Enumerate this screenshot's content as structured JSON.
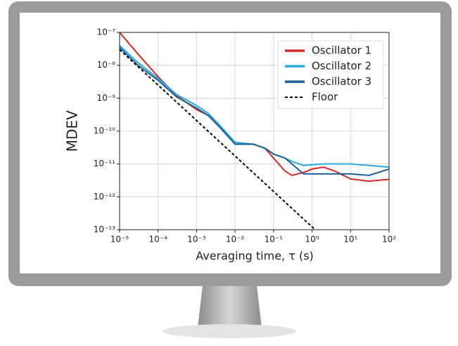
{
  "chart_data": {
    "type": "line",
    "xlabel": "Averaging time, τ (s)",
    "ylabel": "MDEV",
    "log_x": true,
    "log_y": true,
    "grid": true,
    "legend": "upper right",
    "xlim": [
      1e-05,
      100
    ],
    "ylim": [
      1e-13,
      1e-07
    ],
    "xticks": [
      {
        "value": 1e-05,
        "label": "10⁻⁵"
      },
      {
        "value": 0.0001,
        "label": "10⁻⁴"
      },
      {
        "value": 0.001,
        "label": "10⁻³"
      },
      {
        "value": 0.01,
        "label": "10⁻²"
      },
      {
        "value": 0.1,
        "label": "10⁻¹"
      },
      {
        "value": 1,
        "label": "10⁰"
      },
      {
        "value": 10,
        "label": "10¹"
      },
      {
        "value": 100,
        "label": "10²"
      }
    ],
    "yticks": [
      {
        "value": 1e-13,
        "label": "10⁻¹³"
      },
      {
        "value": 1e-12,
        "label": "10⁻¹²"
      },
      {
        "value": 1e-11,
        "label": "10⁻¹¹"
      },
      {
        "value": 1e-10,
        "label": "10⁻¹⁰"
      },
      {
        "value": 1e-09,
        "label": "10⁻⁹"
      },
      {
        "value": 1e-08,
        "label": "10⁻⁸"
      },
      {
        "value": 1e-07,
        "label": "10⁻⁷"
      }
    ],
    "x": [
      1e-05,
      3e-05,
      0.0001,
      0.0003,
      0.001,
      0.002,
      0.004,
      0.01,
      0.03,
      0.06,
      0.1,
      0.2,
      0.3,
      0.6,
      1,
      2,
      4,
      10,
      30,
      100
    ],
    "series": [
      {
        "name": "Oscillator 1",
        "color": "#d42a2a",
        "values": [
          1e-07,
          2.2e-08,
          4.5e-09,
          1.2e-09,
          4.5e-10,
          3e-10,
          1.5e-10,
          4.5e-11,
          4e-11,
          3e-11,
          1.5e-11,
          6e-12,
          4.5e-12,
          5.5e-12,
          7e-12,
          8e-12,
          6e-12,
          3.5e-12,
          3e-12,
          3.4e-12
        ]
      },
      {
        "name": "Oscillator 2",
        "color": "#2aaade",
        "values": [
          4e-08,
          1.2e-08,
          4e-09,
          1.3e-09,
          6e-10,
          3.5e-10,
          1.5e-10,
          4.5e-11,
          4e-11,
          3e-11,
          2e-11,
          1.5e-11,
          1.2e-11,
          9e-12,
          9.5e-12,
          1e-11,
          1e-11,
          1e-11,
          9e-12,
          8e-12
        ]
      },
      {
        "name": "Oscillator 3",
        "color": "#1d5f98",
        "values": [
          3.5e-08,
          1e-08,
          3.5e-09,
          1.1e-09,
          5e-10,
          3e-10,
          1.3e-10,
          4e-11,
          4e-11,
          3e-11,
          2e-11,
          1.5e-11,
          1e-11,
          5e-12,
          5e-12,
          5e-12,
          5e-12,
          5e-12,
          4.5e-12,
          7e-12
        ]
      },
      {
        "name": "Floor",
        "color": "#000000",
        "linestyle": "dashed",
        "x": [
          1e-05,
          1.2
        ],
        "values": [
          3e-08,
          1e-13
        ]
      }
    ]
  }
}
